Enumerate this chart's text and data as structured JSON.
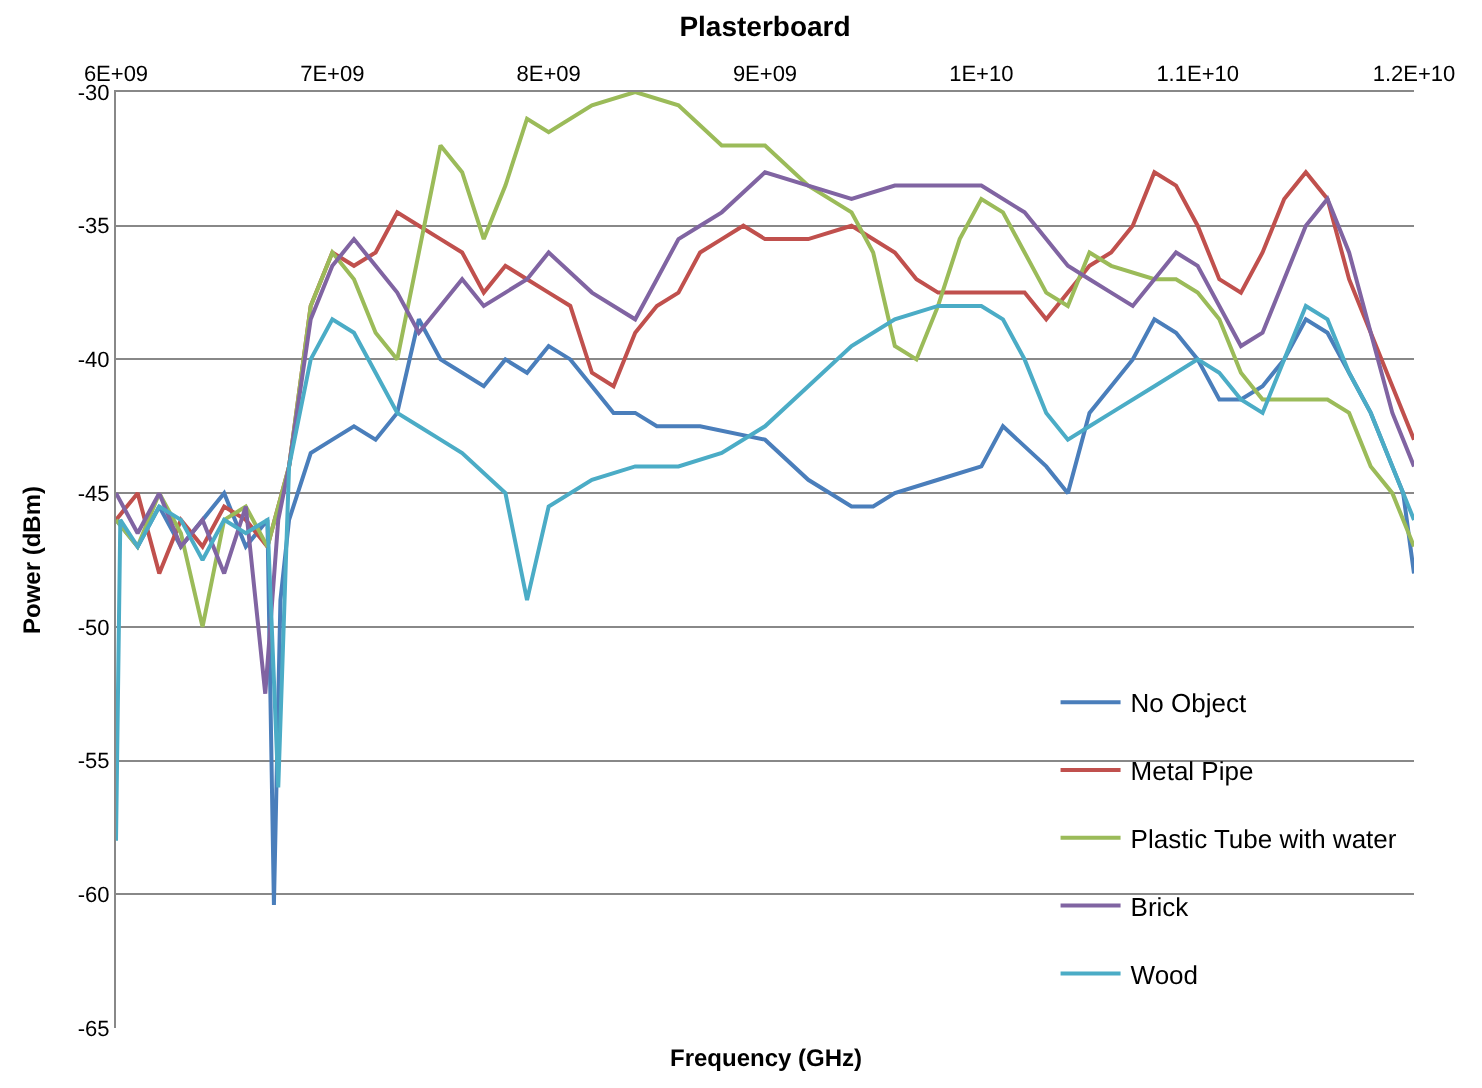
{
  "chart_data": {
    "type": "line",
    "title": "Plasterboard",
    "xlabel": "Frequency (GHz)",
    "ylabel": "Power (dBm)",
    "xlim": [
      6000000000,
      12000000000
    ],
    "xticks": [
      {
        "value": 6000000000,
        "label": "6E+09"
      },
      {
        "value": 7000000000,
        "label": "7E+09"
      },
      {
        "value": 8000000000,
        "label": "8E+09"
      },
      {
        "value": 9000000000,
        "label": "9E+09"
      },
      {
        "value": 10000000000,
        "label": "1E+10"
      },
      {
        "value": 11000000000,
        "label": "1.1E+10"
      },
      {
        "value": 12000000000,
        "label": "1.2E+10"
      }
    ],
    "ylim": [
      -65,
      -30
    ],
    "yticks": [
      -65,
      -60,
      -55,
      -50,
      -45,
      -40,
      -35,
      -30
    ],
    "grid": "y",
    "legend": "bottom right",
    "marker": "none",
    "line_style": "solid",
    "series": [
      {
        "name": "No Object",
        "color": "#4a7ebb",
        "x": [
          6000000000.0,
          6100000000.0,
          6200000000.0,
          6300000000.0,
          6400000000.0,
          6500000000.0,
          6600000000.0,
          6700000000.0,
          6730000000.0,
          6760000000.0,
          6800000000.0,
          6900000000.0,
          7000000000.0,
          7100000000.0,
          7200000000.0,
          7300000000.0,
          7400000000.0,
          7500000000.0,
          7600000000.0,
          7700000000.0,
          7800000000.0,
          7900000000.0,
          8000000000.0,
          8100000000.0,
          8200000000.0,
          8300000000.0,
          8400000000.0,
          8500000000.0,
          8700000000.0,
          9000000000.0,
          9200000000.0,
          9400000000.0,
          9500000000.0,
          9600000000.0,
          9800000000.0,
          10000000000.0,
          10100000000.0,
          10300000000.0,
          10400000000.0,
          10500000000.0,
          10600000000.0,
          10700000000.0,
          10800000000.0,
          10900000000.0,
          11000000000.0,
          11100000000.0,
          11200000000.0,
          11300000000.0,
          11400000000.0,
          11500000000.0,
          11600000000.0,
          11700000000.0,
          11800000000.0,
          11900000000.0,
          11950000000.0,
          12000000000.0
        ],
        "values": [
          -46,
          -47,
          -45.5,
          -47,
          -46,
          -45,
          -47,
          -46,
          -60.4,
          -49,
          -46,
          -43.5,
          -43,
          -42.5,
          -43,
          -42,
          -38.5,
          -40,
          -40.5,
          -41,
          -40,
          -40.5,
          -39.5,
          -40,
          -41,
          -42,
          -42,
          -42.5,
          -42.5,
          -43,
          -44.5,
          -45.5,
          -45.5,
          -45,
          -44.5,
          -44,
          -42.5,
          -44,
          -45,
          -42,
          -41,
          -40,
          -38.5,
          -39,
          -40,
          -41.5,
          -41.5,
          -41,
          -40,
          -38.5,
          -39,
          -40.5,
          -42,
          -44,
          -45,
          -48
        ]
      },
      {
        "name": "Metal Pipe",
        "color": "#c0504d",
        "x": [
          6000000000.0,
          6100000000.0,
          6200000000.0,
          6300000000.0,
          6400000000.0,
          6500000000.0,
          6600000000.0,
          6700000000.0,
          6800000000.0,
          6900000000.0,
          7000000000.0,
          7100000000.0,
          7200000000.0,
          7300000000.0,
          7400000000.0,
          7500000000.0,
          7600000000.0,
          7700000000.0,
          7800000000.0,
          7900000000.0,
          8000000000.0,
          8100000000.0,
          8200000000.0,
          8300000000.0,
          8400000000.0,
          8500000000.0,
          8600000000.0,
          8700000000.0,
          8800000000.0,
          8900000000.0,
          9000000000.0,
          9200000000.0,
          9400000000.0,
          9600000000.0,
          9700000000.0,
          9800000000.0,
          10000000000.0,
          10200000000.0,
          10300000000.0,
          10400000000.0,
          10500000000.0,
          10600000000.0,
          10700000000.0,
          10800000000.0,
          10900000000.0,
          11000000000.0,
          11100000000.0,
          11200000000.0,
          11300000000.0,
          11400000000.0,
          11500000000.0,
          11600000000.0,
          11700000000.0,
          11800000000.0,
          11900000000.0,
          12000000000.0
        ],
        "values": [
          -46,
          -45,
          -48,
          -46,
          -47,
          -45.5,
          -46,
          -47,
          -44,
          -38,
          -36,
          -36.5,
          -36,
          -34.5,
          -35,
          -35.5,
          -36,
          -37.5,
          -36.5,
          -37,
          -37.5,
          -38,
          -40.5,
          -41,
          -39,
          -38,
          -37.5,
          -36,
          -35.5,
          -35,
          -35.5,
          -35.5,
          -35,
          -36,
          -37,
          -37.5,
          -37.5,
          -37.5,
          -38.5,
          -37.5,
          -36.5,
          -36,
          -35,
          -33,
          -33.5,
          -35,
          -37,
          -37.5,
          -36,
          -34,
          -33,
          -34,
          -37,
          -39,
          -41,
          -43
        ]
      },
      {
        "name": "Plastic Tube with water",
        "color": "#9bbb59",
        "x": [
          6000000000.0,
          6100000000.0,
          6200000000.0,
          6300000000.0,
          6400000000.0,
          6500000000.0,
          6600000000.0,
          6700000000.0,
          6800000000.0,
          6900000000.0,
          7000000000.0,
          7100000000.0,
          7200000000.0,
          7300000000.0,
          7400000000.0,
          7500000000.0,
          7600000000.0,
          7700000000.0,
          7800000000.0,
          7900000000.0,
          8000000000.0,
          8200000000.0,
          8400000000.0,
          8600000000.0,
          8800000000.0,
          9000000000.0,
          9200000000.0,
          9400000000.0,
          9500000000.0,
          9600000000.0,
          9700000000.0,
          9800000000.0,
          9900000000.0,
          10000000000.0,
          10100000000.0,
          10200000000.0,
          10300000000.0,
          10400000000.0,
          10500000000.0,
          10600000000.0,
          10800000000.0,
          10900000000.0,
          11000000000.0,
          11100000000.0,
          11200000000.0,
          11300000000.0,
          11500000000.0,
          11600000000.0,
          11700000000.0,
          11800000000.0,
          11900000000.0,
          12000000000.0
        ],
        "values": [
          -46,
          -47,
          -45,
          -46.5,
          -50,
          -46,
          -45.5,
          -47,
          -44,
          -38,
          -36,
          -37,
          -39,
          -40,
          -36,
          -32,
          -33,
          -35.5,
          -33.5,
          -31,
          -31.5,
          -30.5,
          -30,
          -30.5,
          -32,
          -32,
          -33.5,
          -34.5,
          -36,
          -39.5,
          -40,
          -38,
          -35.5,
          -34,
          -34.5,
          -36,
          -37.5,
          -38,
          -36,
          -36.5,
          -37,
          -37,
          -37.5,
          -38.5,
          -40.5,
          -41.5,
          -41.5,
          -41.5,
          -42,
          -44,
          -45,
          -47
        ]
      },
      {
        "name": "Brick",
        "color": "#8064a2",
        "x": [
          6000000000.0,
          6100000000.0,
          6200000000.0,
          6300000000.0,
          6400000000.0,
          6500000000.0,
          6600000000.0,
          6690000000.0,
          6750000000.0,
          6800000000.0,
          6900000000.0,
          7000000000.0,
          7100000000.0,
          7200000000.0,
          7300000000.0,
          7400000000.0,
          7500000000.0,
          7600000000.0,
          7700000000.0,
          7800000000.0,
          7900000000.0,
          8000000000.0,
          8200000000.0,
          8400000000.0,
          8500000000.0,
          8600000000.0,
          8700000000.0,
          8800000000.0,
          9000000000.0,
          9200000000.0,
          9400000000.0,
          9600000000.0,
          9800000000.0,
          10000000000.0,
          10200000000.0,
          10300000000.0,
          10400000000.0,
          10500000000.0,
          10600000000.0,
          10700000000.0,
          10800000000.0,
          10900000000.0,
          11000000000.0,
          11100000000.0,
          11200000000.0,
          11300000000.0,
          11400000000.0,
          11500000000.0,
          11600000000.0,
          11700000000.0,
          11800000000.0,
          11900000000.0,
          12000000000.0
        ],
        "values": [
          -45,
          -46.5,
          -45,
          -47,
          -46,
          -48,
          -45.5,
          -52.5,
          -46,
          -44,
          -38.5,
          -36.5,
          -35.5,
          -36.5,
          -37.5,
          -39,
          -38,
          -37,
          -38,
          -37.5,
          -37,
          -36,
          -37.5,
          -38.5,
          -37,
          -35.5,
          -35,
          -34.5,
          -33,
          -33.5,
          -34,
          -33.5,
          -33.5,
          -33.5,
          -34.5,
          -35.5,
          -36.5,
          -37,
          -37.5,
          -38,
          -37,
          -36,
          -36.5,
          -38,
          -39.5,
          -39,
          -37,
          -35,
          -34,
          -36,
          -39,
          -42,
          -44
        ]
      },
      {
        "name": "Wood",
        "color": "#4bacc6",
        "x": [
          6000000000.0,
          6020000000.0,
          6100000000.0,
          6200000000.0,
          6300000000.0,
          6400000000.0,
          6500000000.0,
          6600000000.0,
          6700000000.0,
          6750000000.0,
          6800000000.0,
          6900000000.0,
          7000000000.0,
          7100000000.0,
          7200000000.0,
          7300000000.0,
          7400000000.0,
          7500000000.0,
          7600000000.0,
          7800000000.0,
          7900000000.0,
          8000000000.0,
          8200000000.0,
          8400000000.0,
          8600000000.0,
          8800000000.0,
          9000000000.0,
          9200000000.0,
          9400000000.0,
          9600000000.0,
          9800000000.0,
          10000000000.0,
          10100000000.0,
          10200000000.0,
          10300000000.0,
          10400000000.0,
          10500000000.0,
          10600000000.0,
          10800000000.0,
          11000000000.0,
          11100000000.0,
          11200000000.0,
          11300000000.0,
          11400000000.0,
          11500000000.0,
          11600000000.0,
          11700000000.0,
          11800000000.0,
          11900000000.0,
          12000000000.0
        ],
        "values": [
          -58,
          -46,
          -47,
          -45.5,
          -46,
          -47.5,
          -46,
          -46.5,
          -46,
          -56,
          -44,
          -40,
          -38.5,
          -39,
          -40.5,
          -42,
          -42.5,
          -43,
          -43.5,
          -45,
          -49,
          -45.5,
          -44.5,
          -44,
          -44,
          -43.5,
          -42.5,
          -41,
          -39.5,
          -38.5,
          -38,
          -38,
          -38.5,
          -40,
          -42,
          -43,
          -42.5,
          -42,
          -41,
          -40,
          -40.5,
          -41.5,
          -42,
          -40,
          -38,
          -38.5,
          -40.5,
          -42,
          -44,
          -46
        ]
      }
    ]
  }
}
